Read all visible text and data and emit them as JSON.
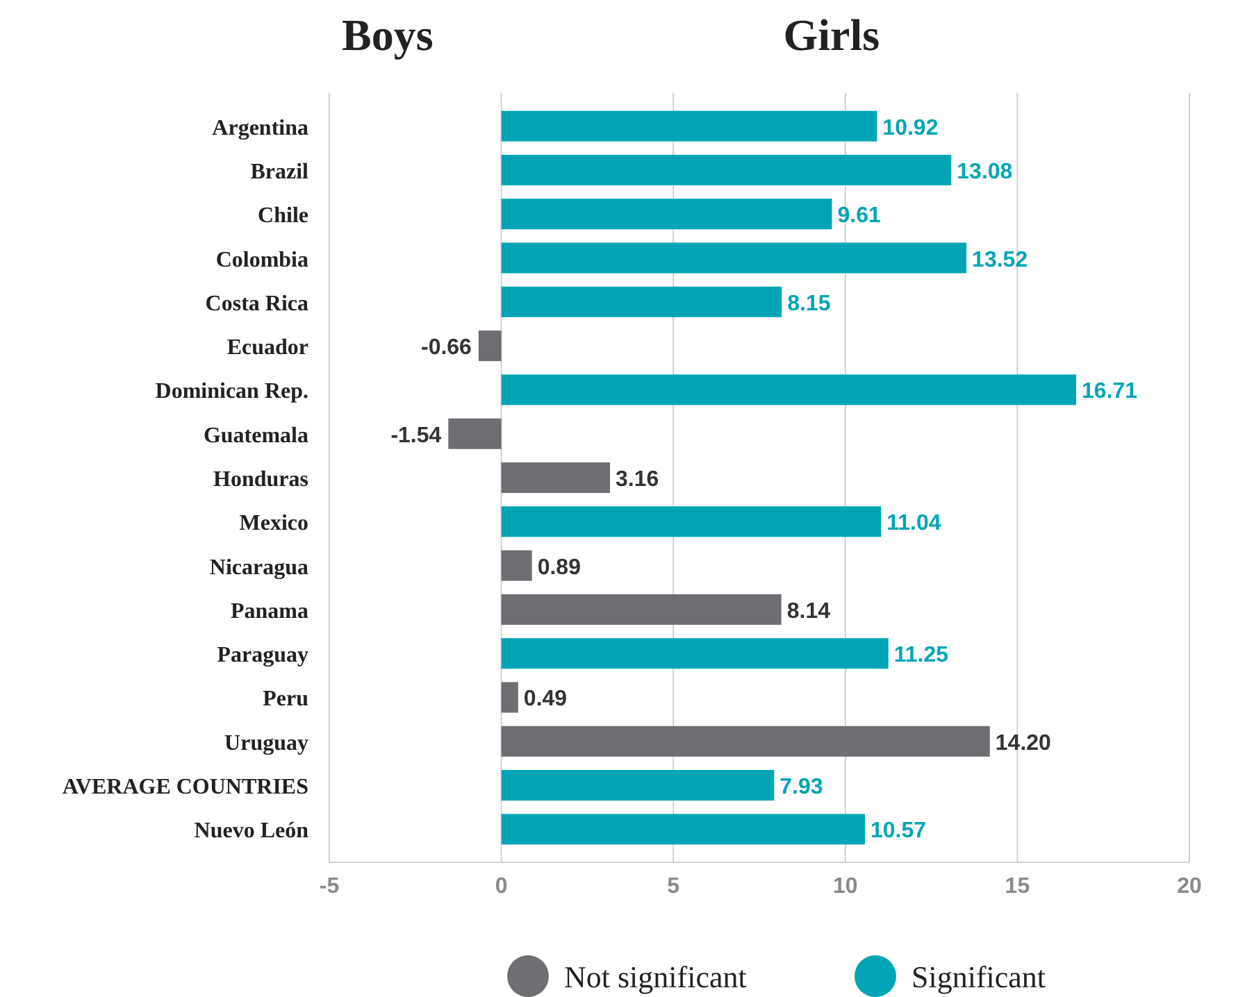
{
  "chart_data": {
    "type": "bar",
    "orientation": "horizontal",
    "stacked": true,
    "categories": [
      "Argentina",
      "Brazil",
      "Chile",
      "Colombia",
      "Costa Rica",
      "Ecuador",
      "Dominican Rep.",
      "Guatemala",
      "Honduras",
      "Mexico",
      "Nicaragua",
      "Panama",
      "Paraguay",
      "Peru",
      "Uruguay",
      "AVERAGE COUNTRIES",
      "Nuevo León"
    ],
    "series": [
      {
        "name": "Not significant",
        "color": "#6d6e71",
        "values": [
          null,
          null,
          null,
          null,
          null,
          -0.66,
          null,
          -1.54,
          3.16,
          null,
          0.89,
          8.14,
          null,
          0.49,
          14.2,
          null,
          null
        ],
        "value_labels": [
          null,
          null,
          null,
          null,
          null,
          "-0.66",
          null,
          "-1.54",
          "3.16",
          null,
          "0.89",
          "8.14",
          null,
          "0.49",
          "14.20",
          null,
          null
        ]
      },
      {
        "name": "Significant",
        "color": "#00a5b5",
        "values": [
          10.92,
          13.08,
          9.61,
          13.52,
          8.15,
          null,
          16.71,
          null,
          null,
          11.04,
          null,
          null,
          11.25,
          null,
          null,
          7.93,
          10.57
        ],
        "value_labels": [
          "10.92",
          "13.08",
          "9.61",
          "13.52",
          "8.15",
          null,
          "16.71",
          null,
          null,
          "11.04",
          null,
          null,
          "11.25",
          null,
          null,
          "7.93",
          "10.57"
        ]
      }
    ],
    "xlim": [
      -5,
      20
    ],
    "xticks": [
      -5,
      0,
      5,
      10,
      15,
      20
    ],
    "grid": "x",
    "legend": "bottom",
    "annotations": [
      "Boys",
      "Girls"
    ]
  }
}
